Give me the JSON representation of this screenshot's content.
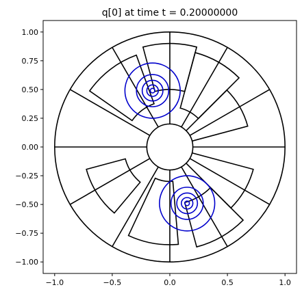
{
  "chart_data": {
    "type": "contour",
    "title": "q[0] at time t =     0.20000000",
    "xlabel": "",
    "ylabel": "",
    "xlim": [
      -1.1,
      1.1
    ],
    "ylim": [
      -1.1,
      1.1
    ],
    "x_ticks": [
      -1.0,
      -0.5,
      0.0,
      0.5,
      1.0
    ],
    "x_tick_labels": [
      "−1.0",
      "−0.5",
      "0.0",
      "0.5",
      "1.0"
    ],
    "y_ticks": [
      1.0,
      0.75,
      0.5,
      0.25,
      0.0,
      -0.25,
      -0.5,
      -0.75,
      -1.0
    ],
    "y_tick_labels": [
      "1.00",
      "0.75",
      "0.50",
      "0.25",
      "0.00",
      "−0.25",
      "−0.50",
      "−0.75",
      "−1.00"
    ],
    "grid": false,
    "mesh": {
      "outer_radius": 1.0,
      "inner_radius": 0.2,
      "line_color": "#000000",
      "radial_lines_deg": [
        0,
        30,
        60,
        90,
        120,
        150,
        180,
        210,
        240,
        270,
        300,
        330
      ],
      "patches": [
        {
          "r": [
            0.2,
            0.7
          ],
          "theta_deg": [
            15,
            45
          ]
        },
        {
          "r": [
            0.35,
            0.85
          ],
          "theta_deg": [
            45,
            75
          ]
        },
        {
          "r": [
            0.5,
            0.9
          ],
          "theta_deg": [
            75,
            105
          ]
        },
        {
          "r": [
            0.4,
            0.85
          ],
          "theta_deg": [
            110,
            145
          ]
        },
        {
          "r": [
            0.4,
            0.75
          ],
          "theta_deg": [
            195,
            230
          ]
        },
        {
          "r": [
            0.3,
            0.85
          ],
          "theta_deg": [
            245,
            275
          ]
        },
        {
          "r": [
            0.5,
            0.9
          ],
          "theta_deg": [
            285,
            315
          ]
        },
        {
          "r": [
            0.2,
            0.75
          ],
          "theta_deg": [
            315,
            345
          ]
        }
      ]
    },
    "contours": {
      "color": "#0000cc",
      "blobs": [
        {
          "center": [
            -0.15,
            0.49
          ],
          "radii": [
            0.02,
            0.05,
            0.09,
            0.14,
            0.24
          ]
        },
        {
          "center": [
            0.15,
            -0.49
          ],
          "radii": [
            0.02,
            0.05,
            0.09,
            0.14,
            0.24
          ]
        }
      ]
    }
  }
}
